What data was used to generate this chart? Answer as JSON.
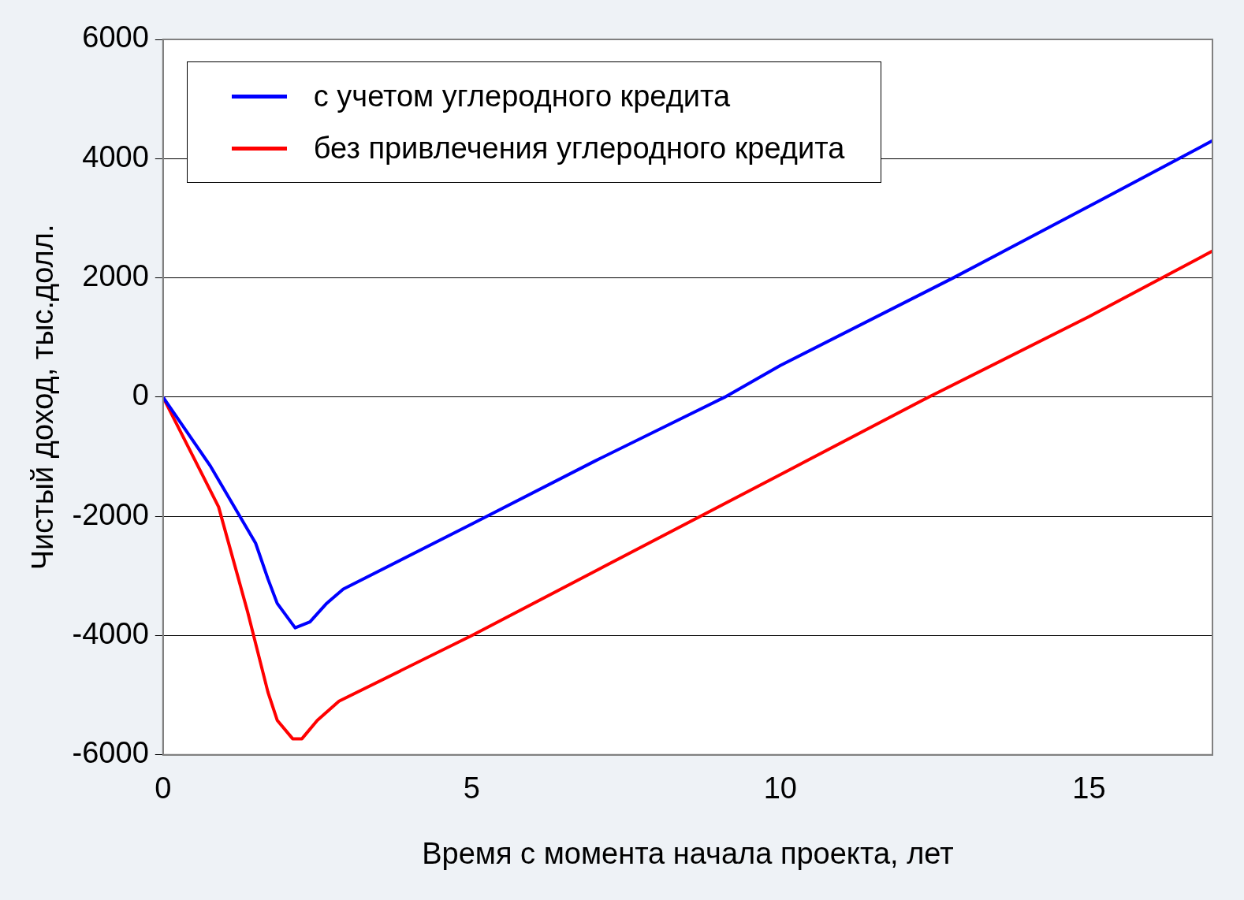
{
  "chart_data": {
    "type": "line",
    "xlabel": "Время с момента начала проекта, лет",
    "ylabel": "Чистый доход, тыс.долл.",
    "xlim": [
      0,
      17
    ],
    "xticks": [
      0,
      5,
      10,
      15
    ],
    "ylim": [
      -6000,
      6000
    ],
    "yticks": [
      -6000,
      -4000,
      -2000,
      0,
      2000,
      4000,
      6000
    ],
    "grid": "y",
    "legend": "top left",
    "line_style": "solid",
    "series": [
      {
        "name": "с учетом углеродного кредита",
        "color": "#0000ff",
        "x": [
          0,
          0.77,
          1.5,
          1.7,
          1.85,
          2.14,
          2.38,
          2.65,
          2.92,
          5,
          7,
          9.1,
          10,
          12.8,
          15,
          17
        ],
        "values": [
          0,
          -1160,
          -2450,
          -3050,
          -3460,
          -3870,
          -3770,
          -3460,
          -3220,
          -2130,
          -1070,
          0,
          530,
          2000,
          3200,
          4300
        ]
      },
      {
        "name": "без привлечения углеродного кредита",
        "color": "#ff0000",
        "x": [
          0,
          0.9,
          1.37,
          1.7,
          1.85,
          2.1,
          2.25,
          2.5,
          2.85,
          5,
          7,
          10,
          12.4,
          15,
          17
        ],
        "values": [
          0,
          -1840,
          -3600,
          -4950,
          -5420,
          -5730,
          -5730,
          -5420,
          -5100,
          -4000,
          -2920,
          -1300,
          0,
          1350,
          2450
        ]
      }
    ]
  }
}
